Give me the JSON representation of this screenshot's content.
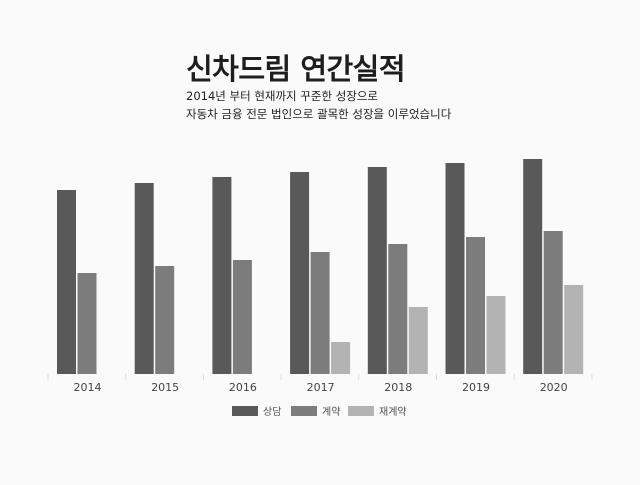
{
  "header": {
    "title": "신차드림 연간실적",
    "subtitle_line1": "2014년 부터 현재까지 꾸준한 성장으로",
    "subtitle_line2": "자동차 금융 전문 법인으로 괄목한 성장을 이루었습니다"
  },
  "chart_data": {
    "type": "bar",
    "title": "",
    "xlabel": "",
    "ylabel": "",
    "ylim": [
      0,
      215
    ],
    "grid": false,
    "legend_position": "bottom",
    "categories": [
      "2014",
      "2015",
      "2016",
      "2017",
      "2018",
      "2019",
      "2020"
    ],
    "series": [
      {
        "name": "상담",
        "color": "#595959",
        "values": [
          184,
          191,
          197,
          202,
          207,
          211,
          215
        ]
      },
      {
        "name": "계약",
        "color": "#7c7c7c",
        "values": [
          101,
          108,
          114,
          122,
          130,
          137,
          143
        ]
      },
      {
        "name": "재계약",
        "color": "#b3b3b3",
        "values": [
          null,
          null,
          null,
          32,
          67,
          78,
          89
        ]
      }
    ]
  }
}
